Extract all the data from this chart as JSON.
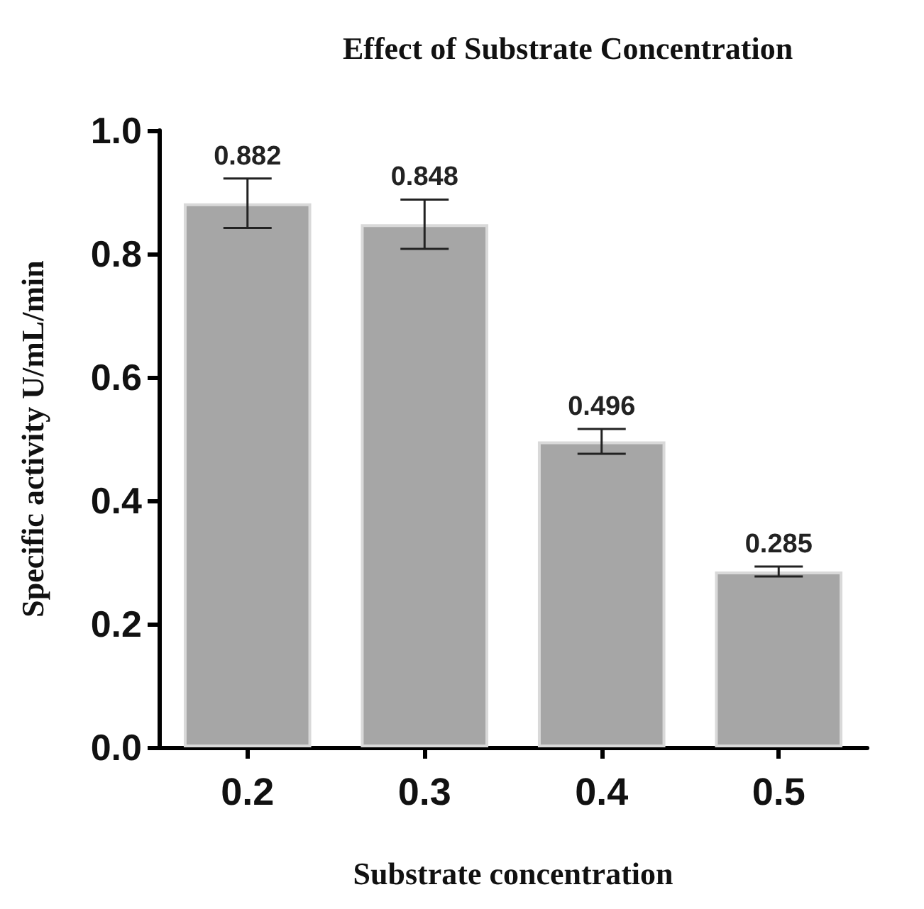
{
  "chart_data": {
    "type": "bar",
    "title": "Effect of Substrate Concentration",
    "xlabel": "Substrate concentration",
    "ylabel": "Specific activity U/mL/min",
    "categories": [
      "0.2",
      "0.3",
      "0.4",
      "0.5"
    ],
    "values": [
      0.882,
      0.848,
      0.496,
      0.285
    ],
    "errors": [
      0.04,
      0.04,
      0.02,
      0.008
    ],
    "color": "#a6a6a6",
    "data_labels": true,
    "ylim": [
      0,
      1.0
    ],
    "yticks": [
      {
        "value": 0,
        "label": "0.0"
      },
      {
        "value": 0.2,
        "label": "0.2"
      },
      {
        "value": 0.4,
        "label": "0.4"
      },
      {
        "value": 0.6,
        "label": "0.6"
      },
      {
        "value": 0.8,
        "label": "0.8"
      },
      {
        "value": 1.0,
        "label": "1.0"
      }
    ],
    "grid": false
  }
}
